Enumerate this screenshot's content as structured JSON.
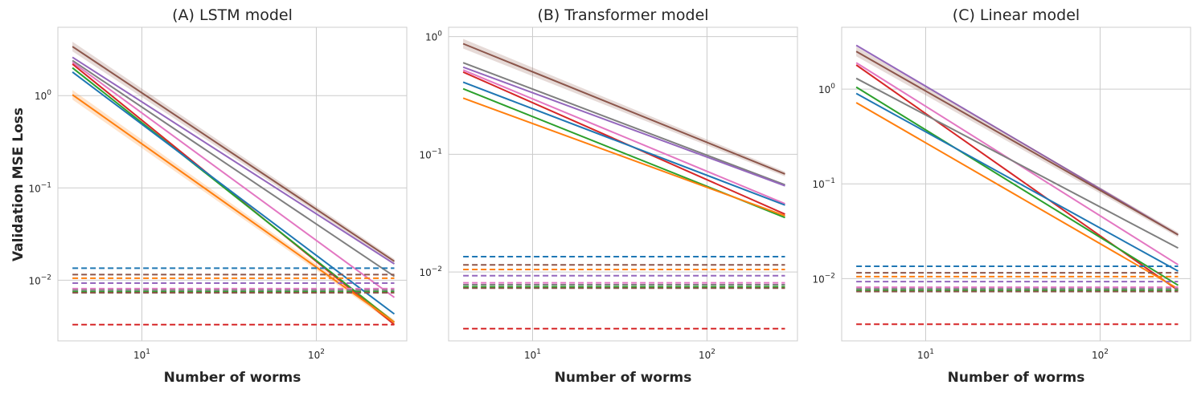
{
  "figure": {
    "ylabel": "Validation MSE Loss",
    "colors": [
      "#1f77b4",
      "#ff7f0e",
      "#2ca02c",
      "#d62728",
      "#9467bd",
      "#8c564b",
      "#e377c2",
      "#7f7f7f"
    ]
  },
  "chart_data": [
    {
      "type": "line",
      "title": "(A) LSTM model",
      "xlabel": "Number of worms",
      "ylabel": "Validation MSE Loss",
      "xscale": "log",
      "yscale": "log",
      "xlim": [
        3.3,
        330
      ],
      "ylim": [
        0.0022,
        5.5
      ],
      "grid": true,
      "x_ticks": [
        {
          "base": "10",
          "exp": "1",
          "value": 10
        },
        {
          "base": "10",
          "exp": "2",
          "value": 100
        }
      ],
      "y_ticks": [
        {
          "base": "10",
          "exp": "0",
          "value": 1
        },
        {
          "base": "10",
          "exp": "−1",
          "value": 0.1
        },
        {
          "base": "10",
          "exp": "−2",
          "value": 0.01
        }
      ],
      "series": [
        {
          "color": "#8c564b",
          "style": "solid",
          "x": [
            4,
            280
          ],
          "y": [
            3.4,
            0.016
          ],
          "band": true
        },
        {
          "color": "#9467bd",
          "style": "solid",
          "x": [
            4,
            280
          ],
          "y": [
            2.6,
            0.015
          ]
        },
        {
          "color": "#7f7f7f",
          "style": "solid",
          "x": [
            4,
            280
          ],
          "y": [
            2.4,
            0.011
          ]
        },
        {
          "color": "#e377c2",
          "style": "solid",
          "x": [
            4,
            280
          ],
          "y": [
            2.3,
            0.0065
          ]
        },
        {
          "color": "#d62728",
          "style": "solid",
          "x": [
            4,
            280
          ],
          "y": [
            2.2,
            0.0033
          ]
        },
        {
          "color": "#2ca02c",
          "style": "solid",
          "x": [
            4,
            280
          ],
          "y": [
            2.0,
            0.0035
          ]
        },
        {
          "color": "#1f77b4",
          "style": "solid",
          "x": [
            4,
            280
          ],
          "y": [
            1.8,
            0.0043
          ]
        },
        {
          "color": "#ff7f0e",
          "style": "solid",
          "x": [
            4,
            280
          ],
          "y": [
            1.02,
            0.0035
          ],
          "band": true
        },
        {
          "color": "#1f77b4",
          "style": "dashed",
          "x": [
            4,
            280
          ],
          "y": [
            0.0135,
            0.0135
          ]
        },
        {
          "color": "#8c564b",
          "style": "dashed",
          "x": [
            4,
            280
          ],
          "y": [
            0.0115,
            0.0115
          ]
        },
        {
          "color": "#ff7f0e",
          "style": "dashed",
          "x": [
            4,
            280
          ],
          "y": [
            0.0105,
            0.0105
          ]
        },
        {
          "color": "#9467bd",
          "style": "dashed",
          "x": [
            4,
            280
          ],
          "y": [
            0.0093,
            0.0093
          ]
        },
        {
          "color": "#e377c2",
          "style": "dashed",
          "x": [
            4,
            280
          ],
          "y": [
            0.0081,
            0.0081
          ]
        },
        {
          "color": "#7f7f7f",
          "style": "dashed",
          "x": [
            4,
            280
          ],
          "y": [
            0.0078,
            0.0078
          ]
        },
        {
          "color": "#2ca02c",
          "style": "dashed",
          "x": [
            4,
            280
          ],
          "y": [
            0.0075,
            0.0075
          ]
        },
        {
          "color": "#8c564b",
          "style": "dashed",
          "x": [
            4,
            280
          ],
          "y": [
            0.0073,
            0.0073
          ]
        },
        {
          "color": "#d62728",
          "style": "dashed",
          "x": [
            4,
            280
          ],
          "y": [
            0.0033,
            0.0033
          ]
        }
      ]
    },
    {
      "type": "line",
      "title": "(B) Transformer model",
      "xlabel": "Number of worms",
      "ylabel": "",
      "xscale": "log",
      "yscale": "log",
      "xlim": [
        3.3,
        330
      ],
      "ylim": [
        0.0026,
        1.2
      ],
      "grid": true,
      "x_ticks": [
        {
          "base": "10",
          "exp": "1",
          "value": 10
        },
        {
          "base": "10",
          "exp": "2",
          "value": 100
        }
      ],
      "y_ticks": [
        {
          "base": "10",
          "exp": "0",
          "value": 1
        },
        {
          "base": "10",
          "exp": "−1",
          "value": 0.1
        },
        {
          "base": "10",
          "exp": "−2",
          "value": 0.01
        }
      ],
      "series": [
        {
          "color": "#8c564b",
          "style": "solid",
          "x": [
            4,
            280
          ],
          "y": [
            0.87,
            0.068
          ],
          "band": true
        },
        {
          "color": "#7f7f7f",
          "style": "solid",
          "x": [
            4,
            280
          ],
          "y": [
            0.6,
            0.055
          ]
        },
        {
          "color": "#9467bd",
          "style": "solid",
          "x": [
            4,
            280
          ],
          "y": [
            0.55,
            0.054
          ]
        },
        {
          "color": "#e377c2",
          "style": "solid",
          "x": [
            4,
            280
          ],
          "y": [
            0.52,
            0.038
          ]
        },
        {
          "color": "#d62728",
          "style": "solid",
          "x": [
            4,
            280
          ],
          "y": [
            0.5,
            0.031
          ]
        },
        {
          "color": "#1f77b4",
          "style": "solid",
          "x": [
            4,
            280
          ],
          "y": [
            0.41,
            0.037
          ]
        },
        {
          "color": "#2ca02c",
          "style": "solid",
          "x": [
            4,
            280
          ],
          "y": [
            0.36,
            0.029
          ]
        },
        {
          "color": "#ff7f0e",
          "style": "solid",
          "x": [
            4,
            280
          ],
          "y": [
            0.3,
            0.03
          ]
        },
        {
          "color": "#1f77b4",
          "style": "dashed",
          "x": [
            4,
            280
          ],
          "y": [
            0.0135,
            0.0135
          ]
        },
        {
          "color": "#8c564b",
          "style": "dashed",
          "x": [
            4,
            280
          ],
          "y": [
            0.0115,
            0.0115
          ]
        },
        {
          "color": "#ff7f0e",
          "style": "dashed",
          "x": [
            4,
            280
          ],
          "y": [
            0.0105,
            0.0105
          ]
        },
        {
          "color": "#9467bd",
          "style": "dashed",
          "x": [
            4,
            280
          ],
          "y": [
            0.0093,
            0.0093
          ]
        },
        {
          "color": "#e377c2",
          "style": "dashed",
          "x": [
            4,
            280
          ],
          "y": [
            0.0081,
            0.0081
          ]
        },
        {
          "color": "#7f7f7f",
          "style": "dashed",
          "x": [
            4,
            280
          ],
          "y": [
            0.0078,
            0.0078
          ]
        },
        {
          "color": "#2ca02c",
          "style": "dashed",
          "x": [
            4,
            280
          ],
          "y": [
            0.0075,
            0.0075
          ]
        },
        {
          "color": "#8c564b",
          "style": "dashed",
          "x": [
            4,
            280
          ],
          "y": [
            0.0073,
            0.0073
          ]
        },
        {
          "color": "#d62728",
          "style": "dashed",
          "x": [
            4,
            280
          ],
          "y": [
            0.0033,
            0.0033
          ]
        }
      ]
    },
    {
      "type": "line",
      "title": "(C) Linear model",
      "xlabel": "Number of worms",
      "ylabel": "",
      "xscale": "log",
      "yscale": "log",
      "xlim": [
        3.3,
        330
      ],
      "ylim": [
        0.0022,
        4.5
      ],
      "grid": true,
      "x_ticks": [
        {
          "base": "10",
          "exp": "1",
          "value": 10
        },
        {
          "base": "10",
          "exp": "2",
          "value": 100
        }
      ],
      "y_ticks": [
        {
          "base": "10",
          "exp": "0",
          "value": 1
        },
        {
          "base": "10",
          "exp": "−1",
          "value": 0.1
        },
        {
          "base": "10",
          "exp": "−2",
          "value": 0.01
        }
      ],
      "series": [
        {
          "color": "#9467bd",
          "style": "solid",
          "x": [
            4,
            280
          ],
          "y": [
            2.9,
            0.029
          ]
        },
        {
          "color": "#8c564b",
          "style": "solid",
          "x": [
            4,
            280
          ],
          "y": [
            2.5,
            0.029
          ],
          "band": true
        },
        {
          "color": "#e377c2",
          "style": "solid",
          "x": [
            4,
            280
          ],
          "y": [
            1.9,
            0.014
          ]
        },
        {
          "color": "#d62728",
          "style": "solid",
          "x": [
            4,
            280
          ],
          "y": [
            1.8,
            0.0075
          ]
        },
        {
          "color": "#7f7f7f",
          "style": "solid",
          "x": [
            4,
            280
          ],
          "y": [
            1.3,
            0.021
          ]
        },
        {
          "color": "#2ca02c",
          "style": "solid",
          "x": [
            4,
            280
          ],
          "y": [
            1.05,
            0.0085
          ]
        },
        {
          "color": "#1f77b4",
          "style": "solid",
          "x": [
            4,
            280
          ],
          "y": [
            0.9,
            0.012
          ]
        },
        {
          "color": "#ff7f0e",
          "style": "solid",
          "x": [
            4,
            280
          ],
          "y": [
            0.72,
            0.0078
          ]
        },
        {
          "color": "#1f77b4",
          "style": "dashed",
          "x": [
            4,
            280
          ],
          "y": [
            0.0135,
            0.0135
          ]
        },
        {
          "color": "#8c564b",
          "style": "dashed",
          "x": [
            4,
            280
          ],
          "y": [
            0.0115,
            0.0115
          ]
        },
        {
          "color": "#ff7f0e",
          "style": "dashed",
          "x": [
            4,
            280
          ],
          "y": [
            0.0105,
            0.0105
          ]
        },
        {
          "color": "#9467bd",
          "style": "dashed",
          "x": [
            4,
            280
          ],
          "y": [
            0.0093,
            0.0093
          ]
        },
        {
          "color": "#e377c2",
          "style": "dashed",
          "x": [
            4,
            280
          ],
          "y": [
            0.0081,
            0.0081
          ]
        },
        {
          "color": "#7f7f7f",
          "style": "dashed",
          "x": [
            4,
            280
          ],
          "y": [
            0.0078,
            0.0078
          ]
        },
        {
          "color": "#2ca02c",
          "style": "dashed",
          "x": [
            4,
            280
          ],
          "y": [
            0.0075,
            0.0075
          ]
        },
        {
          "color": "#8c564b",
          "style": "dashed",
          "x": [
            4,
            280
          ],
          "y": [
            0.0073,
            0.0073
          ]
        },
        {
          "color": "#d62728",
          "style": "dashed",
          "x": [
            4,
            280
          ],
          "y": [
            0.0033,
            0.0033
          ]
        }
      ]
    }
  ]
}
